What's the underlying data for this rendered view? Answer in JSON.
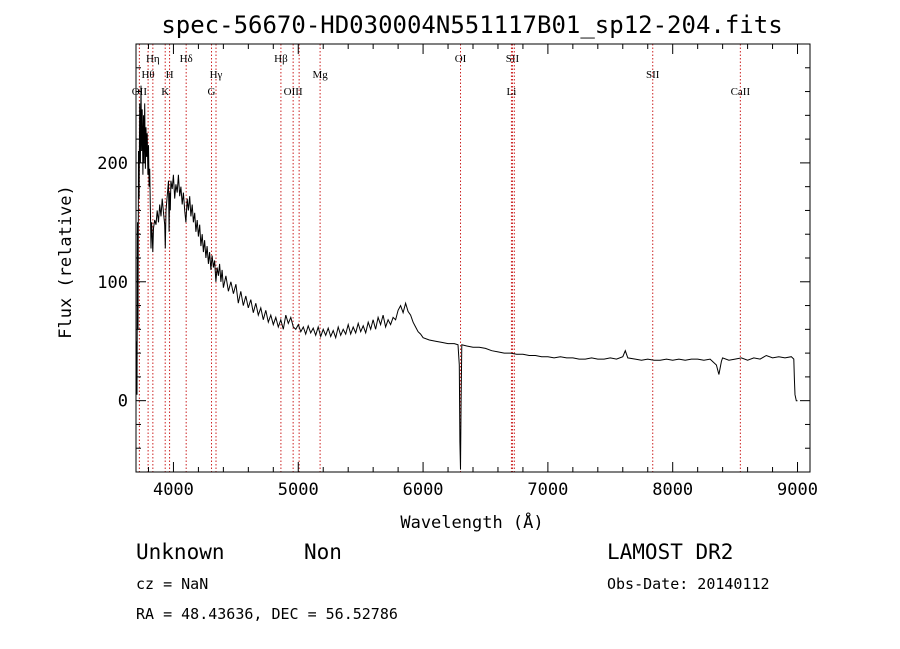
{
  "chart_data": {
    "type": "line",
    "title": "spec-56670-HD030004N551117B01_sp12-204.fits",
    "xlabel": "Wavelength (Å)",
    "ylabel": "Flux (relative)",
    "xlim": [
      3700,
      9100
    ],
    "ylim": [
      -60,
      300
    ],
    "xticks": [
      4000,
      5000,
      6000,
      7000,
      8000,
      9000
    ],
    "yticks": [
      0,
      100,
      200
    ],
    "grid": false,
    "line_color": "#000000",
    "marker_color": "#cc2222",
    "series": [
      {
        "values": [
          [
            3700,
            20
          ],
          [
            3705,
            50
          ],
          [
            3708,
            5
          ],
          [
            3712,
            150
          ],
          [
            3716,
            60
          ],
          [
            3720,
            210
          ],
          [
            3725,
            170
          ],
          [
            3730,
            250
          ],
          [
            3735,
            200
          ],
          [
            3740,
            265
          ],
          [
            3745,
            210
          ],
          [
            3750,
            245
          ],
          [
            3755,
            190
          ],
          [
            3760,
            240
          ],
          [
            3765,
            200
          ],
          [
            3770,
            250
          ],
          [
            3775,
            195
          ],
          [
            3780,
            230
          ],
          [
            3785,
            205
          ],
          [
            3790,
            225
          ],
          [
            3795,
            190
          ],
          [
            3800,
            215
          ],
          [
            3805,
            180
          ],
          [
            3810,
            195
          ],
          [
            3815,
            160
          ],
          [
            3820,
            128
          ],
          [
            3825,
            150
          ],
          [
            3830,
            140
          ],
          [
            3835,
            125
          ],
          [
            3840,
            145
          ],
          [
            3850,
            152
          ],
          [
            3860,
            148
          ],
          [
            3870,
            160
          ],
          [
            3880,
            150
          ],
          [
            3890,
            165
          ],
          [
            3900,
            155
          ],
          [
            3910,
            170
          ],
          [
            3920,
            158
          ],
          [
            3930,
            148
          ],
          [
            3935,
            128
          ],
          [
            3940,
            160
          ],
          [
            3950,
            172
          ],
          [
            3960,
            185
          ],
          [
            3965,
            142
          ],
          [
            3970,
            175
          ],
          [
            3975,
            160
          ],
          [
            3980,
            185
          ],
          [
            3990,
            178
          ],
          [
            4000,
            190
          ],
          [
            4010,
            170
          ],
          [
            4020,
            182
          ],
          [
            4030,
            175
          ],
          [
            4040,
            190
          ],
          [
            4050,
            172
          ],
          [
            4060,
            180
          ],
          [
            4070,
            165
          ],
          [
            4080,
            175
          ],
          [
            4090,
            160
          ],
          [
            4100,
            150
          ],
          [
            4110,
            170
          ],
          [
            4120,
            160
          ],
          [
            4130,
            172
          ],
          [
            4140,
            155
          ],
          [
            4150,
            165
          ],
          [
            4160,
            150
          ],
          [
            4170,
            158
          ],
          [
            4180,
            142
          ],
          [
            4190,
            152
          ],
          [
            4200,
            138
          ],
          [
            4210,
            148
          ],
          [
            4220,
            130
          ],
          [
            4230,
            140
          ],
          [
            4240,
            125
          ],
          [
            4250,
            135
          ],
          [
            4260,
            120
          ],
          [
            4270,
            130
          ],
          [
            4280,
            115
          ],
          [
            4290,
            125
          ],
          [
            4300,
            110
          ],
          [
            4310,
            122
          ],
          [
            4320,
            112
          ],
          [
            4330,
            118
          ],
          [
            4340,
            100
          ],
          [
            4350,
            112
          ],
          [
            4360,
            105
          ],
          [
            4370,
            115
          ],
          [
            4380,
            100
          ],
          [
            4390,
            110
          ],
          [
            4400,
            95
          ],
          [
            4420,
            105
          ],
          [
            4440,
            92
          ],
          [
            4460,
            100
          ],
          [
            4480,
            90
          ],
          [
            4500,
            98
          ],
          [
            4520,
            82
          ],
          [
            4540,
            92
          ],
          [
            4560,
            80
          ],
          [
            4580,
            88
          ],
          [
            4600,
            78
          ],
          [
            4620,
            85
          ],
          [
            4640,
            74
          ],
          [
            4660,
            82
          ],
          [
            4680,
            72
          ],
          [
            4700,
            78
          ],
          [
            4720,
            68
          ],
          [
            4740,
            76
          ],
          [
            4760,
            66
          ],
          [
            4780,
            72
          ],
          [
            4800,
            64
          ],
          [
            4820,
            70
          ],
          [
            4840,
            62
          ],
          [
            4860,
            68
          ],
          [
            4880,
            60
          ],
          [
            4900,
            72
          ],
          [
            4920,
            65
          ],
          [
            4940,
            70
          ],
          [
            4960,
            62
          ],
          [
            4980,
            60
          ],
          [
            5000,
            64
          ],
          [
            5020,
            58
          ],
          [
            5040,
            62
          ],
          [
            5060,
            56
          ],
          [
            5080,
            63
          ],
          [
            5100,
            57
          ],
          [
            5120,
            61
          ],
          [
            5140,
            55
          ],
          [
            5160,
            62
          ],
          [
            5180,
            54
          ],
          [
            5200,
            60
          ],
          [
            5220,
            55
          ],
          [
            5240,
            61
          ],
          [
            5260,
            54
          ],
          [
            5280,
            59
          ],
          [
            5300,
            53
          ],
          [
            5320,
            62
          ],
          [
            5340,
            55
          ],
          [
            5360,
            60
          ],
          [
            5380,
            56
          ],
          [
            5400,
            64
          ],
          [
            5420,
            56
          ],
          [
            5440,
            62
          ],
          [
            5460,
            57
          ],
          [
            5480,
            65
          ],
          [
            5500,
            58
          ],
          [
            5520,
            63
          ],
          [
            5540,
            57
          ],
          [
            5560,
            66
          ],
          [
            5580,
            60
          ],
          [
            5600,
            68
          ],
          [
            5620,
            60
          ],
          [
            5640,
            70
          ],
          [
            5660,
            64
          ],
          [
            5680,
            72
          ],
          [
            5700,
            62
          ],
          [
            5720,
            68
          ],
          [
            5740,
            64
          ],
          [
            5760,
            70
          ],
          [
            5780,
            68
          ],
          [
            5800,
            76
          ],
          [
            5820,
            80
          ],
          [
            5840,
            74
          ],
          [
            5860,
            82
          ],
          [
            5880,
            75
          ],
          [
            5900,
            72
          ],
          [
            5920,
            66
          ],
          [
            5940,
            62
          ],
          [
            5960,
            58
          ],
          [
            5980,
            56
          ],
          [
            6000,
            53
          ],
          [
            6050,
            51
          ],
          [
            6100,
            50
          ],
          [
            6150,
            49
          ],
          [
            6200,
            48
          ],
          [
            6250,
            48
          ],
          [
            6280,
            47
          ],
          [
            6290,
            30
          ],
          [
            6295,
            -35
          ],
          [
            6300,
            -58
          ],
          [
            6305,
            0
          ],
          [
            6310,
            47
          ],
          [
            6350,
            46
          ],
          [
            6400,
            45
          ],
          [
            6450,
            45
          ],
          [
            6500,
            44
          ],
          [
            6550,
            42
          ],
          [
            6600,
            41
          ],
          [
            6650,
            40
          ],
          [
            6700,
            40
          ],
          [
            6750,
            39
          ],
          [
            6800,
            39
          ],
          [
            6850,
            38
          ],
          [
            6900,
            38
          ],
          [
            6950,
            37
          ],
          [
            7000,
            37
          ],
          [
            7050,
            36
          ],
          [
            7100,
            37
          ],
          [
            7150,
            36
          ],
          [
            7200,
            36
          ],
          [
            7250,
            35
          ],
          [
            7300,
            35
          ],
          [
            7350,
            36
          ],
          [
            7400,
            35
          ],
          [
            7450,
            35
          ],
          [
            7500,
            36
          ],
          [
            7550,
            35
          ],
          [
            7600,
            37
          ],
          [
            7620,
            42
          ],
          [
            7640,
            36
          ],
          [
            7700,
            35
          ],
          [
            7750,
            34
          ],
          [
            7800,
            35
          ],
          [
            7850,
            34
          ],
          [
            7900,
            34
          ],
          [
            7950,
            35
          ],
          [
            8000,
            34
          ],
          [
            8050,
            35
          ],
          [
            8100,
            34
          ],
          [
            8150,
            35
          ],
          [
            8200,
            35
          ],
          [
            8250,
            34
          ],
          [
            8300,
            35
          ],
          [
            8350,
            30
          ],
          [
            8370,
            22
          ],
          [
            8390,
            33
          ],
          [
            8400,
            36
          ],
          [
            8450,
            34
          ],
          [
            8500,
            35
          ],
          [
            8550,
            36
          ],
          [
            8600,
            34
          ],
          [
            8650,
            36
          ],
          [
            8700,
            35
          ],
          [
            8750,
            38
          ],
          [
            8800,
            36
          ],
          [
            8850,
            37
          ],
          [
            8900,
            36
          ],
          [
            8950,
            37
          ],
          [
            8970,
            35
          ],
          [
            8975,
            18
          ],
          [
            8980,
            5
          ],
          [
            8990,
            0
          ],
          [
            9000,
            0
          ]
        ]
      }
    ],
    "line_markers": [
      {
        "label": "OII",
        "x": 3727,
        "row": 3
      },
      {
        "label": "Hθ",
        "x": 3797,
        "row": 2
      },
      {
        "label": "Hη",
        "x": 3835,
        "row": 1
      },
      {
        "label": "K",
        "x": 3934,
        "row": 3
      },
      {
        "label": "H",
        "x": 3969,
        "row": 2
      },
      {
        "label": "Hδ",
        "x": 4102,
        "row": 1
      },
      {
        "label": "G",
        "x": 4305,
        "row": 3
      },
      {
        "label": "Hγ",
        "x": 4341,
        "row": 2
      },
      {
        "label": "Hβ",
        "x": 4861,
        "row": 1
      },
      {
        "label": "OIII",
        "x": 4959,
        "row": 3
      },
      {
        "label": "",
        "x": 5007,
        "row": 3
      },
      {
        "label": "Mg",
        "x": 5175,
        "row": 2
      },
      {
        "label": "OI",
        "x": 6300,
        "row": 1
      },
      {
        "label": "SII",
        "x": 6716,
        "row": 1
      },
      {
        "label": "",
        "x": 6731,
        "row": 1
      },
      {
        "label": "Li",
        "x": 6708,
        "row": 3
      },
      {
        "label": "SII",
        "x": 7840,
        "row": 2
      },
      {
        "label": "CaII",
        "x": 8542,
        "row": 3
      }
    ]
  },
  "info": {
    "object_class": "Unknown",
    "object_subclass": "Non",
    "survey": "LAMOST DR2",
    "redshift": "cz = NaN",
    "obs_date": "Obs-Date: 20140112",
    "coords": "RA =  48.43636, DEC =  56.52786"
  }
}
